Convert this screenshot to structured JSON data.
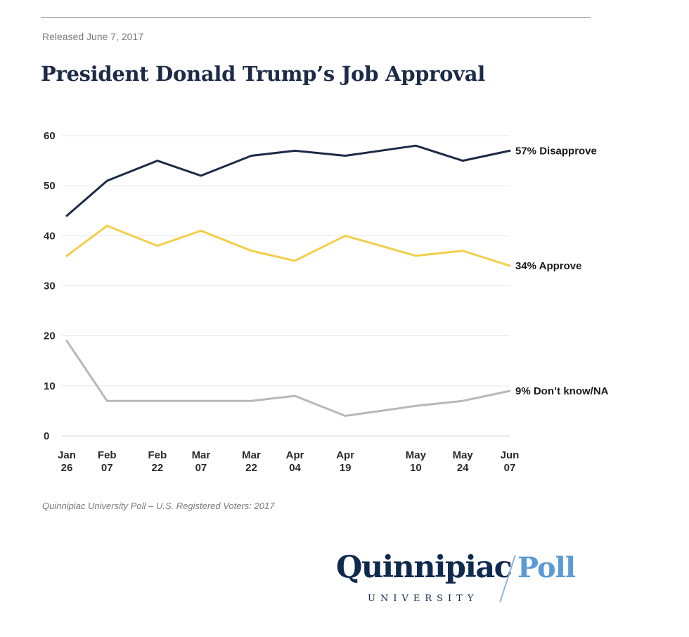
{
  "header": {
    "released": "Released June 7, 2017",
    "title": "President Donald Trump’s Job Approval"
  },
  "footer": {
    "source": "Quinnipiac University Poll – U.S. Registered Voters: 2017"
  },
  "logo": {
    "name": "Quinnipiac",
    "suffix": "Poll",
    "subtitle": "UNIVERSITY"
  },
  "chart_data": {
    "type": "line",
    "title": "President Donald Trump’s Job Approval",
    "xlabel": "",
    "ylabel": "",
    "ylim": [
      0,
      60
    ],
    "yticks": [
      0,
      10,
      20,
      30,
      40,
      50,
      60
    ],
    "grid": true,
    "legend_placement": "direct labels at line ends (right)",
    "categories": [
      [
        "Jan",
        "26"
      ],
      [
        "Feb",
        "07"
      ],
      [
        "Feb",
        "22"
      ],
      [
        "Mar",
        "07"
      ],
      [
        "Mar",
        "22"
      ],
      [
        "Apr",
        "04"
      ],
      [
        "Apr",
        "19"
      ],
      [
        "May",
        "10"
      ],
      [
        "May",
        "24"
      ],
      [
        "Jun",
        "07"
      ]
    ],
    "x_days": [
      0,
      12,
      27,
      40,
      55,
      68,
      83,
      104,
      118,
      132
    ],
    "series": [
      {
        "name": "Disapprove",
        "label": "57% Disapprove",
        "color": "#1d2b47",
        "values": [
          44,
          51,
          55,
          52,
          56,
          57,
          56,
          58,
          55,
          57
        ]
      },
      {
        "name": "Approve",
        "label": "34% Approve",
        "color": "#f2cf4a",
        "values": [
          36,
          42,
          38,
          41,
          37,
          35,
          40,
          36,
          37,
          34
        ]
      },
      {
        "name": "Don't know/NA",
        "label": "9% Don’t know/NA",
        "color": "#b8b8b8",
        "values": [
          19,
          7,
          7,
          7,
          7,
          8,
          4,
          6,
          7,
          9
        ]
      }
    ]
  }
}
